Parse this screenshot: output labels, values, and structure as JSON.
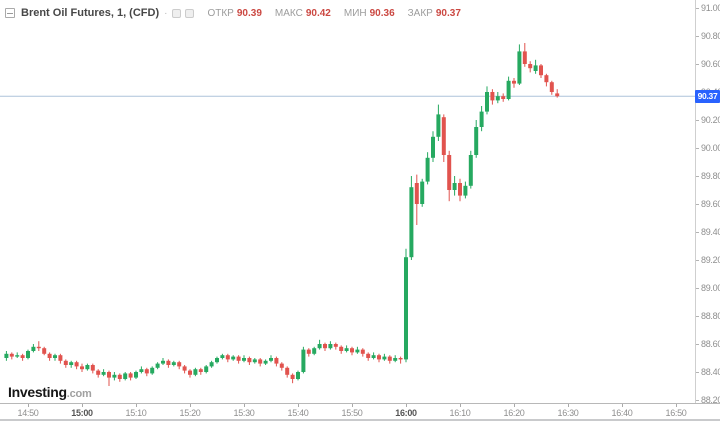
{
  "header": {
    "title": "Brent Oil Futures, 1, (CFD)",
    "separator": "·",
    "ohlc": [
      {
        "label": "ОТКР",
        "value": "90.39"
      },
      {
        "label": "МАКС",
        "value": "90.42"
      },
      {
        "label": "МИН",
        "value": "90.36"
      },
      {
        "label": "ЗАКР",
        "value": "90.37"
      }
    ],
    "value_color": "#cb4842"
  },
  "watermark": {
    "brand": "Investing",
    "suffix": ".com"
  },
  "price_axis": {
    "ticks": [
      "91.00",
      "90.80",
      "90.60",
      "90.40",
      "90.20",
      "90.00",
      "89.80",
      "89.60",
      "89.40",
      "89.20",
      "89.00",
      "88.80",
      "88.60",
      "88.40",
      "88.20"
    ],
    "last_price": "90.37",
    "badge_color": "#2962fe"
  },
  "time_axis": {
    "ticks": [
      {
        "label": "14:50",
        "bold": false
      },
      {
        "label": "15:00",
        "bold": true
      },
      {
        "label": "15:10",
        "bold": false
      },
      {
        "label": "15:20",
        "bold": false
      },
      {
        "label": "15:30",
        "bold": false
      },
      {
        "label": "15:40",
        "bold": false
      },
      {
        "label": "15:50",
        "bold": false
      },
      {
        "label": "16:00",
        "bold": true
      },
      {
        "label": "16:10",
        "bold": false
      },
      {
        "label": "16:20",
        "bold": false
      },
      {
        "label": "16:30",
        "bold": false
      },
      {
        "label": "16:40",
        "bold": false
      },
      {
        "label": "16:50",
        "bold": false
      }
    ]
  },
  "last_price_line": {
    "price": 90.37,
    "color": "#aec3da"
  },
  "chart_data": {
    "type": "candlestick",
    "title": "Brent Oil Futures, 1, (CFD)",
    "interval_minutes": 1,
    "ylim": [
      88.15,
      91.05
    ],
    "grid": false,
    "up_color": "#26a960",
    "down_color": "#e1534e",
    "candles": [
      [
        "14:46",
        88.5,
        88.55,
        88.48,
        88.53
      ],
      [
        "14:47",
        88.53,
        88.54,
        88.49,
        88.51
      ],
      [
        "14:48",
        88.51,
        88.54,
        88.5,
        88.52
      ],
      [
        "14:49",
        88.52,
        88.53,
        88.48,
        88.5
      ],
      [
        "14:50",
        88.5,
        88.56,
        88.49,
        88.55
      ],
      [
        "14:51",
        88.55,
        88.6,
        88.54,
        88.58
      ],
      [
        "14:52",
        88.58,
        88.62,
        88.55,
        88.57
      ],
      [
        "14:53",
        88.57,
        88.58,
        88.52,
        88.53
      ],
      [
        "14:54",
        88.53,
        88.54,
        88.48,
        88.5
      ],
      [
        "14:55",
        88.5,
        88.53,
        88.48,
        88.52
      ],
      [
        "14:56",
        88.52,
        88.53,
        88.46,
        88.48
      ],
      [
        "14:57",
        88.48,
        88.49,
        88.43,
        88.45
      ],
      [
        "14:58",
        88.45,
        88.48,
        88.43,
        88.47
      ],
      [
        "14:59",
        88.47,
        88.48,
        88.42,
        88.44
      ],
      [
        "15:00",
        88.44,
        88.46,
        88.4,
        88.42
      ],
      [
        "15:01",
        88.42,
        88.46,
        88.41,
        88.45
      ],
      [
        "15:02",
        88.45,
        88.46,
        88.39,
        88.41
      ],
      [
        "15:03",
        88.41,
        88.42,
        88.36,
        88.38
      ],
      [
        "15:04",
        88.38,
        88.42,
        88.37,
        88.4
      ],
      [
        "15:05",
        88.4,
        88.41,
        88.3,
        88.36
      ],
      [
        "15:06",
        88.36,
        88.4,
        88.34,
        88.38
      ],
      [
        "15:07",
        88.38,
        88.39,
        88.33,
        88.35
      ],
      [
        "15:08",
        88.35,
        88.4,
        88.34,
        88.39
      ],
      [
        "15:09",
        88.39,
        88.4,
        88.34,
        88.36
      ],
      [
        "15:10",
        88.36,
        88.41,
        88.35,
        88.4
      ],
      [
        "15:11",
        88.4,
        88.44,
        88.39,
        88.42
      ],
      [
        "15:12",
        88.42,
        88.43,
        88.37,
        88.39
      ],
      [
        "15:13",
        88.39,
        88.44,
        88.38,
        88.43
      ],
      [
        "15:14",
        88.43,
        88.47,
        88.42,
        88.46
      ],
      [
        "15:15",
        88.46,
        88.5,
        88.45,
        88.48
      ],
      [
        "15:16",
        88.48,
        88.49,
        88.43,
        88.45
      ],
      [
        "15:17",
        88.45,
        88.48,
        88.44,
        88.47
      ],
      [
        "15:18",
        88.47,
        88.48,
        88.42,
        88.44
      ],
      [
        "15:19",
        88.44,
        88.45,
        88.39,
        88.41
      ],
      [
        "15:20",
        88.41,
        88.42,
        88.36,
        88.38
      ],
      [
        "15:21",
        88.38,
        88.43,
        88.37,
        88.42
      ],
      [
        "15:22",
        88.42,
        88.43,
        88.38,
        88.4
      ],
      [
        "15:23",
        88.4,
        88.45,
        88.39,
        88.44
      ],
      [
        "15:24",
        88.44,
        88.48,
        88.43,
        88.47
      ],
      [
        "15:25",
        88.47,
        88.51,
        88.46,
        88.5
      ],
      [
        "15:26",
        88.5,
        88.53,
        88.49,
        88.52
      ],
      [
        "15:27",
        88.52,
        88.53,
        88.47,
        88.49
      ],
      [
        "15:28",
        88.49,
        88.52,
        88.48,
        88.51
      ],
      [
        "15:29",
        88.51,
        88.52,
        88.46,
        88.48
      ],
      [
        "15:30",
        88.48,
        88.52,
        88.47,
        88.5
      ],
      [
        "15:31",
        88.5,
        88.51,
        88.45,
        88.47
      ],
      [
        "15:32",
        88.47,
        88.5,
        88.46,
        88.49
      ],
      [
        "15:33",
        88.49,
        88.5,
        88.44,
        88.46
      ],
      [
        "15:34",
        88.46,
        88.49,
        88.45,
        88.48
      ],
      [
        "15:35",
        88.48,
        88.52,
        88.47,
        88.5
      ],
      [
        "15:36",
        88.5,
        88.51,
        88.44,
        88.46
      ],
      [
        "15:37",
        88.46,
        88.47,
        88.41,
        88.43
      ],
      [
        "15:38",
        88.43,
        88.44,
        88.36,
        88.38
      ],
      [
        "15:39",
        88.38,
        88.39,
        88.32,
        88.35
      ],
      [
        "15:40",
        88.35,
        88.41,
        88.34,
        88.4
      ],
      [
        "15:41",
        88.4,
        88.58,
        88.39,
        88.56
      ],
      [
        "15:42",
        88.56,
        88.57,
        88.51,
        88.53
      ],
      [
        "15:43",
        88.53,
        88.58,
        88.52,
        88.57
      ],
      [
        "15:44",
        88.57,
        88.63,
        88.56,
        88.6
      ],
      [
        "15:45",
        88.6,
        88.61,
        88.55,
        88.57
      ],
      [
        "15:46",
        88.57,
        88.62,
        88.56,
        88.6
      ],
      [
        "15:47",
        88.6,
        88.61,
        88.56,
        88.58
      ],
      [
        "15:48",
        88.58,
        88.59,
        88.53,
        88.55
      ],
      [
        "15:49",
        88.55,
        88.59,
        88.54,
        88.57
      ],
      [
        "15:50",
        88.57,
        88.58,
        88.52,
        88.54
      ],
      [
        "15:51",
        88.54,
        88.58,
        88.53,
        88.56
      ],
      [
        "15:52",
        88.56,
        88.57,
        88.51,
        88.53
      ],
      [
        "15:53",
        88.53,
        88.54,
        88.48,
        88.5
      ],
      [
        "15:54",
        88.5,
        88.54,
        88.49,
        88.52
      ],
      [
        "15:55",
        88.52,
        88.53,
        88.47,
        88.49
      ],
      [
        "15:56",
        88.49,
        88.53,
        88.48,
        88.51
      ],
      [
        "15:57",
        88.51,
        88.52,
        88.46,
        88.48
      ],
      [
        "15:58",
        88.48,
        88.52,
        88.47,
        88.5
      ],
      [
        "15:59",
        88.5,
        88.51,
        88.46,
        88.49
      ],
      [
        "16:00",
        88.49,
        89.28,
        88.47,
        89.22
      ],
      [
        "16:01",
        89.22,
        89.8,
        89.2,
        89.72
      ],
      [
        "16:02",
        89.75,
        89.81,
        89.45,
        89.6
      ],
      [
        "16:03",
        89.6,
        89.78,
        89.58,
        89.76
      ],
      [
        "16:04",
        89.76,
        89.97,
        89.74,
        89.93
      ],
      [
        "16:05",
        89.93,
        90.12,
        89.9,
        90.08
      ],
      [
        "16:06",
        90.08,
        90.31,
        90.05,
        90.24
      ],
      [
        "16:07",
        90.22,
        90.24,
        89.9,
        89.95
      ],
      [
        "16:08",
        89.95,
        89.98,
        89.62,
        89.7
      ],
      [
        "16:09",
        89.7,
        89.8,
        89.66,
        89.75
      ],
      [
        "16:10",
        89.75,
        89.78,
        89.62,
        89.66
      ],
      [
        "16:11",
        89.66,
        89.76,
        89.64,
        89.73
      ],
      [
        "16:12",
        89.73,
        89.98,
        89.71,
        89.95
      ],
      [
        "16:13",
        89.95,
        90.2,
        89.93,
        90.15
      ],
      [
        "16:14",
        90.15,
        90.3,
        90.12,
        90.26
      ],
      [
        "16:15",
        90.26,
        90.44,
        90.24,
        90.4
      ],
      [
        "16:16",
        90.4,
        90.42,
        90.31,
        90.34
      ],
      [
        "16:17",
        90.34,
        90.4,
        90.32,
        90.37
      ],
      [
        "16:18",
        90.37,
        90.39,
        90.33,
        90.35
      ],
      [
        "16:19",
        90.35,
        90.51,
        90.34,
        90.48
      ],
      [
        "16:20",
        90.48,
        90.5,
        90.43,
        90.46
      ],
      [
        "16:21",
        90.46,
        90.74,
        90.45,
        90.69
      ],
      [
        "16:22",
        90.69,
        90.75,
        90.58,
        90.6
      ],
      [
        "16:23",
        90.6,
        90.62,
        90.54,
        90.57
      ],
      [
        "16:24",
        90.55,
        90.63,
        90.53,
        90.59
      ],
      [
        "16:25",
        90.59,
        90.6,
        90.5,
        90.52
      ],
      [
        "16:26",
        90.52,
        90.53,
        90.44,
        90.47
      ],
      [
        "16:27",
        90.47,
        90.48,
        90.38,
        90.4
      ],
      [
        "16:28",
        90.39,
        90.42,
        90.36,
        90.37
      ]
    ]
  }
}
